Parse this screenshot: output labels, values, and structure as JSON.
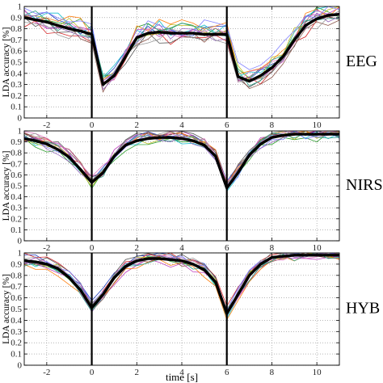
{
  "chart_data": [
    {
      "type": "line",
      "side_label": "EEG",
      "ylabel": "LDA accuracy [%]",
      "xlim": [
        -3,
        11
      ],
      "ylim": [
        0,
        1
      ],
      "xticks": [
        -2,
        0,
        2,
        4,
        6,
        8,
        10
      ],
      "yticks": [
        0,
        0.1,
        0.2,
        0.3,
        0.4,
        0.5,
        0.6,
        0.7,
        0.8,
        0.9,
        1
      ],
      "yticklabels": [
        "0",
        "0.1",
        "0.2",
        "0.3",
        "0.4",
        "0.5",
        "0.6",
        "0.7",
        "0.8",
        "0.9",
        "1"
      ],
      "show_xticklabels": true,
      "event_lines": [
        0,
        6
      ],
      "x": [
        -3,
        -2.5,
        -2,
        -1.5,
        -1,
        -0.5,
        0,
        0.5,
        1,
        1.5,
        2,
        2.5,
        3,
        3.5,
        4,
        4.5,
        5,
        5.5,
        6,
        6.5,
        7,
        7.5,
        8,
        8.5,
        9,
        9.5,
        10,
        10.5,
        11
      ],
      "mean": [
        0.9,
        0.88,
        0.86,
        0.83,
        0.8,
        0.78,
        0.75,
        0.3,
        0.38,
        0.55,
        0.72,
        0.76,
        0.77,
        0.76,
        0.76,
        0.76,
        0.75,
        0.75,
        0.75,
        0.37,
        0.33,
        0.38,
        0.45,
        0.55,
        0.7,
        0.83,
        0.89,
        0.92,
        0.93
      ],
      "subject_count": 14,
      "subject_spread": 0.13,
      "subject_colors": [
        "#1f3fbf",
        "#2a9d2a",
        "#d62728",
        "#17becf",
        "#bf3fbf",
        "#bcbd22",
        "#555555",
        "#ff7f0e",
        "#8c564b",
        "#e377c2",
        "#7f7fff",
        "#2ca089",
        "#9467bd",
        "#999999"
      ]
    },
    {
      "type": "line",
      "side_label": "NIRS",
      "ylabel": "LDA accuracy [%]",
      "xlim": [
        -3,
        11
      ],
      "ylim": [
        0,
        1
      ],
      "xticks": [
        -2,
        0,
        2,
        4,
        6,
        8,
        10
      ],
      "yticks": [
        0,
        0.1,
        0.2,
        0.3,
        0.4,
        0.5,
        0.6,
        0.7,
        0.8,
        0.9,
        1
      ],
      "yticklabels": [
        "0",
        "0.1",
        "0.2",
        "0.3",
        "0.4",
        "0.5",
        "0.6",
        "0.7",
        "0.8",
        "0.9",
        "1"
      ],
      "show_xticklabels": true,
      "event_lines": [
        0,
        6
      ],
      "x": [
        -3,
        -2.5,
        -2,
        -1.5,
        -1,
        -0.5,
        0,
        0.5,
        1,
        1.5,
        2,
        2.5,
        3,
        3.5,
        4,
        4.5,
        5,
        5.5,
        6,
        6.5,
        7,
        7.5,
        8,
        8.5,
        9,
        9.5,
        10,
        10.5,
        11
      ],
      "mean": [
        0.93,
        0.91,
        0.88,
        0.83,
        0.76,
        0.65,
        0.53,
        0.62,
        0.77,
        0.87,
        0.91,
        0.93,
        0.94,
        0.94,
        0.93,
        0.91,
        0.87,
        0.77,
        0.48,
        0.62,
        0.78,
        0.88,
        0.94,
        0.96,
        0.97,
        0.97,
        0.97,
        0.97,
        0.97
      ],
      "subject_count": 14,
      "subject_spread": 0.08,
      "subject_colors": [
        "#1f3fbf",
        "#2a9d2a",
        "#d62728",
        "#17becf",
        "#bf3fbf",
        "#bcbd22",
        "#555555",
        "#ff7f0e",
        "#8c564b",
        "#e377c2",
        "#7f7fff",
        "#2ca089",
        "#9467bd",
        "#999999"
      ]
    },
    {
      "type": "line",
      "side_label": "HYB",
      "ylabel": "LDA accuracy [%]",
      "xlabel": "time [s]",
      "xlim": [
        -3,
        11
      ],
      "ylim": [
        0,
        1
      ],
      "xticks": [
        -2,
        0,
        2,
        4,
        6,
        8,
        10
      ],
      "yticks": [
        0,
        0.1,
        0.2,
        0.3,
        0.4,
        0.5,
        0.6,
        0.7,
        0.8,
        0.9,
        1
      ],
      "yticklabels": [
        "0",
        "0.1",
        "0.2",
        "0.3",
        "0.4",
        "0.5",
        "0.6",
        "0.7",
        "0.8",
        "0.9",
        "1"
      ],
      "show_xticklabels": true,
      "event_lines": [
        0,
        6
      ],
      "x": [
        -3,
        -2.5,
        -2,
        -1.5,
        -1,
        -0.5,
        0,
        0.5,
        1,
        1.5,
        2,
        2.5,
        3,
        3.5,
        4,
        4.5,
        5,
        5.5,
        6,
        6.5,
        7,
        7.5,
        8,
        8.5,
        9,
        9.5,
        10,
        10.5,
        11
      ],
      "mean": [
        0.93,
        0.92,
        0.9,
        0.86,
        0.78,
        0.67,
        0.51,
        0.63,
        0.78,
        0.88,
        0.93,
        0.95,
        0.95,
        0.94,
        0.93,
        0.9,
        0.85,
        0.74,
        0.46,
        0.63,
        0.8,
        0.9,
        0.96,
        0.97,
        0.98,
        0.98,
        0.98,
        0.98,
        0.98
      ],
      "subject_count": 14,
      "subject_spread": 0.07,
      "subject_colors": [
        "#1f3fbf",
        "#2a9d2a",
        "#d62728",
        "#17becf",
        "#bf3fbf",
        "#bcbd22",
        "#555555",
        "#ff7f0e",
        "#8c564b",
        "#e377c2",
        "#7f7fff",
        "#2ca089",
        "#9467bd",
        "#999999"
      ]
    }
  ]
}
